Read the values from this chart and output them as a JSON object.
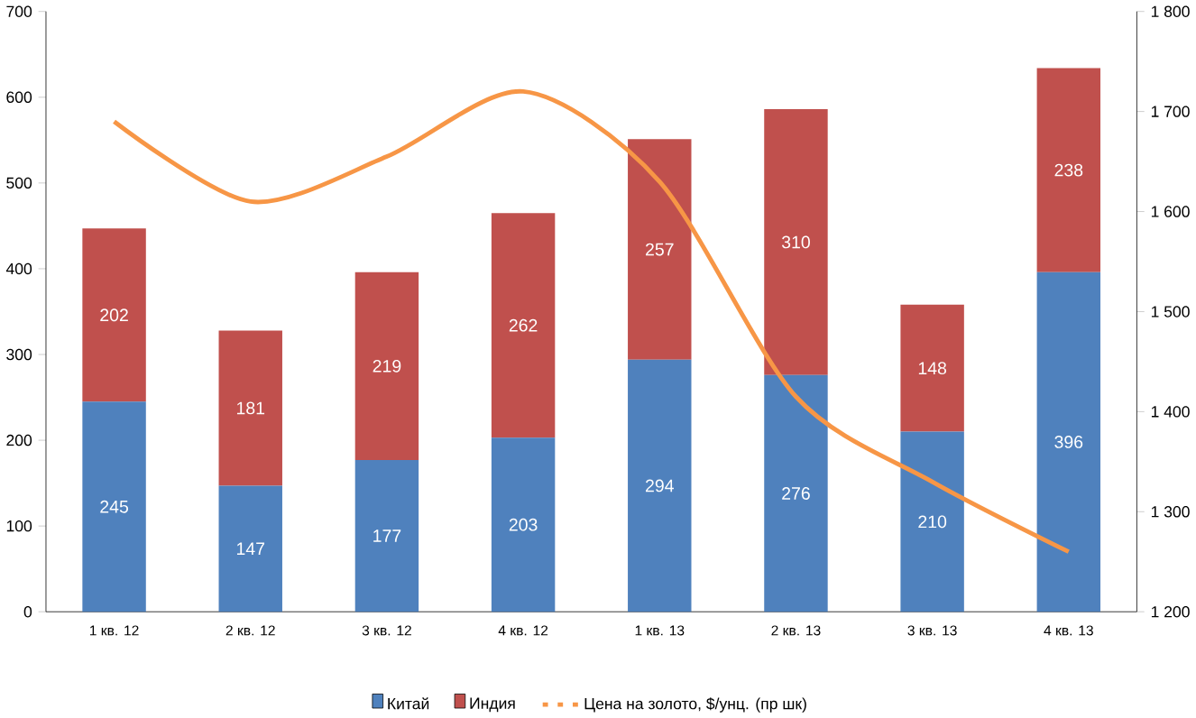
{
  "chart_data": {
    "type": "bar",
    "stacked": true,
    "categories": [
      "1 кв. 12",
      "2 кв. 12",
      "3 кв. 12",
      "4 кв. 12",
      "1 кв. 13",
      "2 кв. 13",
      "3 кв. 13",
      "4 кв. 13"
    ],
    "series": [
      {
        "name": "Китай",
        "color": "#4f81bd",
        "values": [
          245,
          147,
          177,
          203,
          294,
          276,
          210,
          396
        ],
        "value_labels": [
          "245",
          "147",
          "177",
          "203",
          "294",
          "276",
          "210",
          "396"
        ]
      },
      {
        "name": "Индия",
        "color": "#c0504d",
        "values": [
          202,
          181,
          219,
          262,
          257,
          310,
          148,
          238
        ],
        "value_labels": [
          "202",
          "181",
          "219",
          "262",
          "257",
          "310",
          "148",
          "238"
        ]
      },
      {
        "name": "Цена на золото, $/унц. (пр шк)",
        "type": "line",
        "axis": "y2",
        "color": "#f79646",
        "values": [
          1690,
          1610,
          1655,
          1720,
          1630,
          1415,
          1330,
          1260
        ]
      }
    ],
    "ylim": [
      0,
      700
    ],
    "yticks": [
      0,
      100,
      200,
      300,
      400,
      500,
      600,
      700
    ],
    "y2lim": [
      1200,
      1800
    ],
    "y2ticks": [
      {
        "value": 1200,
        "label": "1 200"
      },
      {
        "value": 1300,
        "label": "1 300"
      },
      {
        "value": 1400,
        "label": "1 400"
      },
      {
        "value": 1500,
        "label": "1 500"
      },
      {
        "value": 1600,
        "label": "1 600"
      },
      {
        "value": 1700,
        "label": "1 700"
      },
      {
        "value": 1800,
        "label": "1 800"
      }
    ],
    "legend": "bottom",
    "grid": false,
    "marker": "none"
  }
}
